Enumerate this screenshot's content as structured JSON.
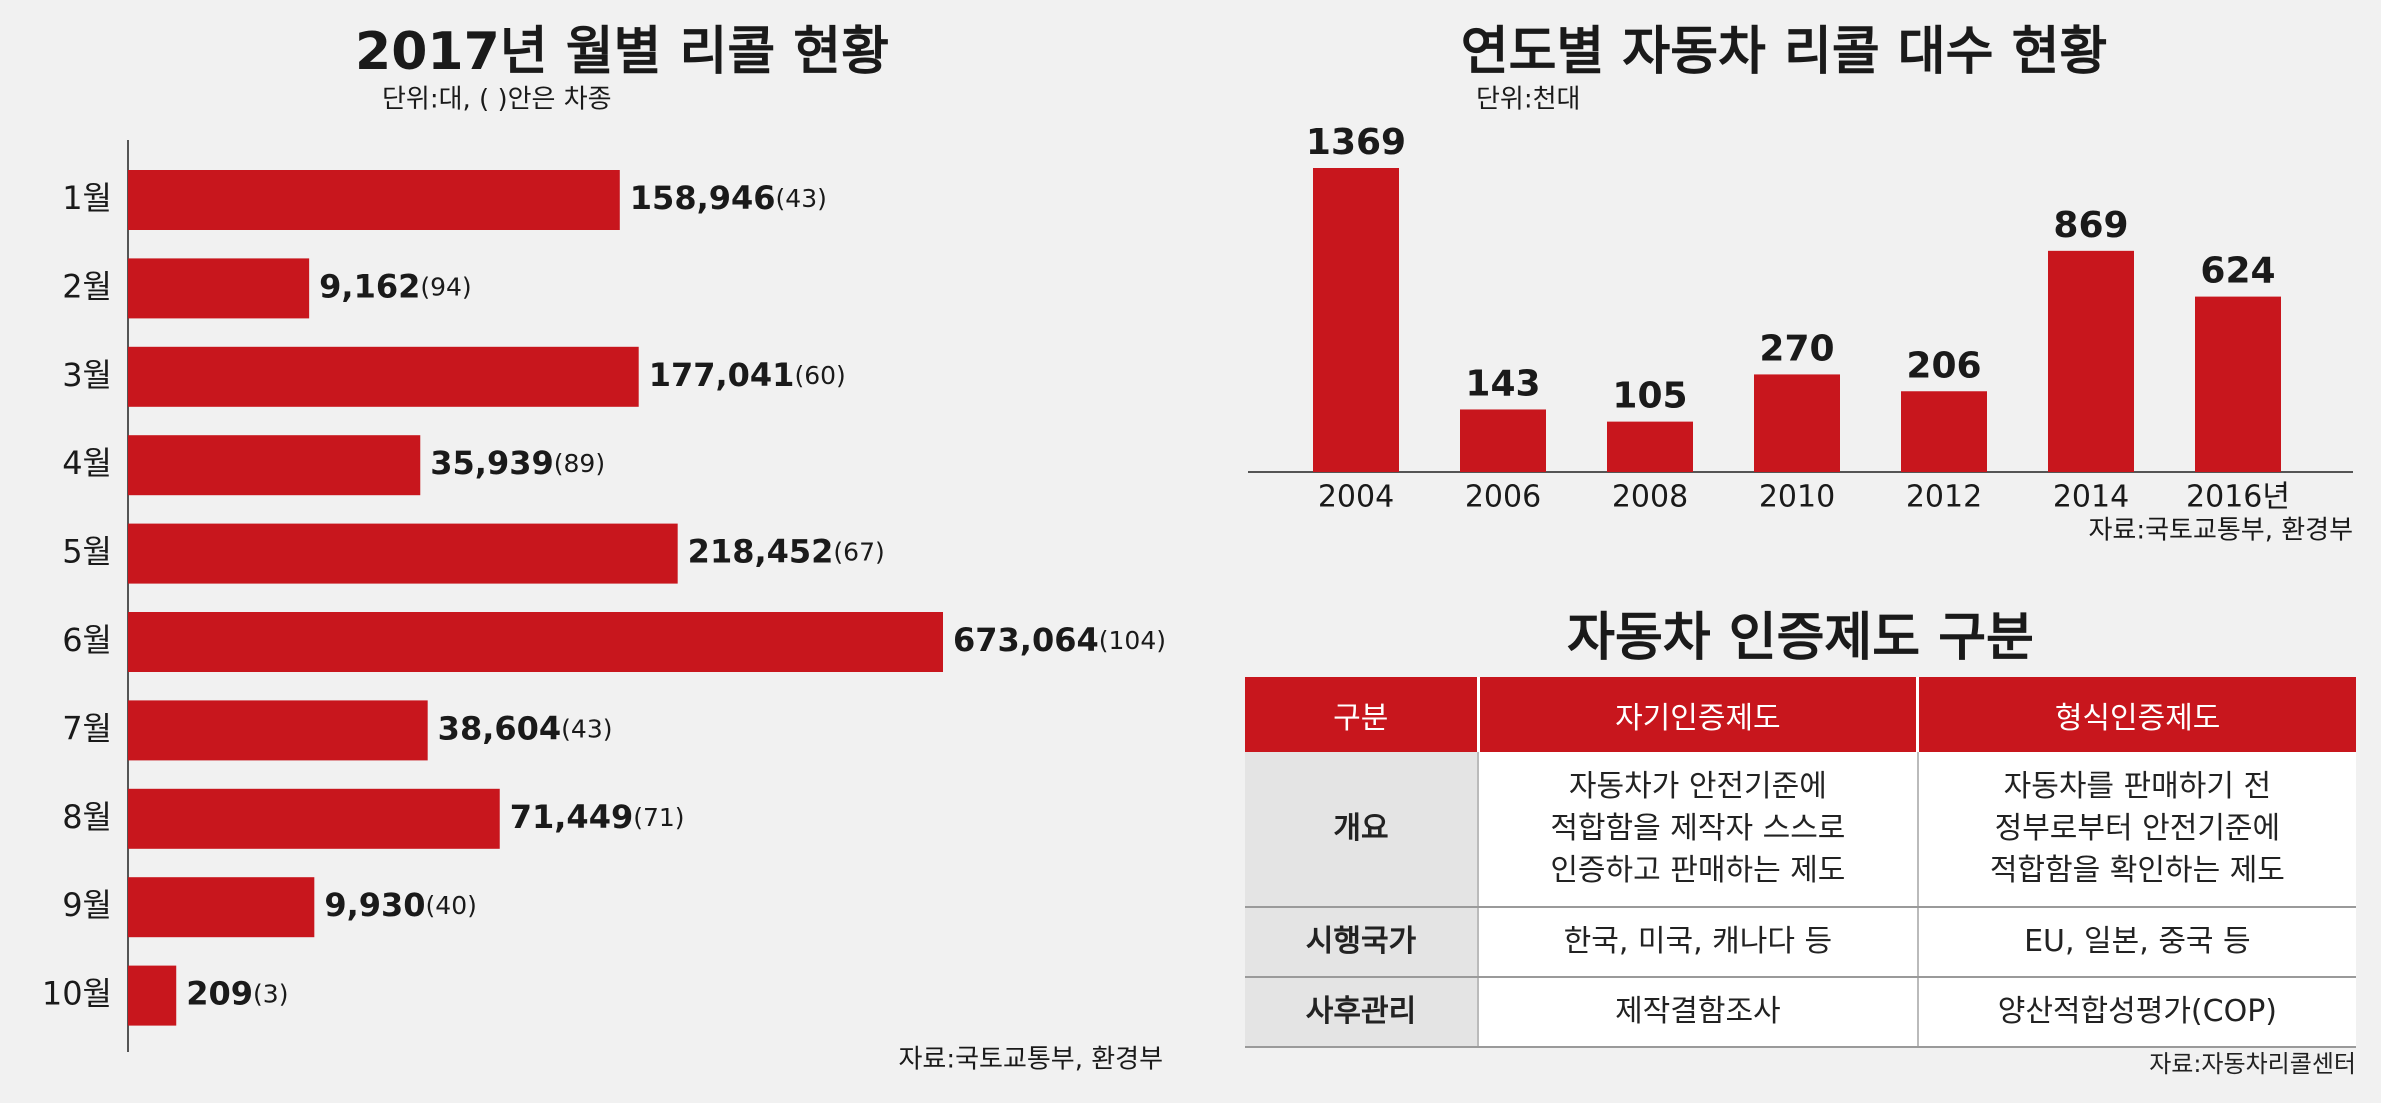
{
  "chart_data": [
    {
      "type": "bar",
      "orientation": "horizontal",
      "title": "2017년 월별 리콜 현황",
      "subtitle": "단위:대, (  )안은 차종",
      "categories": [
        "1월",
        "2월",
        "3월",
        "4월",
        "5월",
        "6월",
        "7월",
        "8월",
        "9월",
        "10월"
      ],
      "values": [
        158946,
        9162,
        177041,
        35939,
        218452,
        673064,
        38604,
        71449,
        9930,
        209
      ],
      "value_labels": [
        "158,946",
        "9,162",
        "177,041",
        "35,939",
        "218,452",
        "673,064",
        "38,604",
        "71,449",
        "9,930",
        "209"
      ],
      "count_labels": [
        "(43)",
        "(94)",
        "(60)",
        "(89)",
        "(67)",
        "(104)",
        "(43)",
        "(71)",
        "(40)",
        "(3)"
      ],
      "color": "#c8161d",
      "source": "자료:국토교통부, 환경부"
    },
    {
      "type": "bar",
      "orientation": "vertical",
      "title": "연도별 자동차 리콜 대수 현황",
      "subtitle": "단위:천대",
      "categories": [
        "2004",
        "2006",
        "2008",
        "2010",
        "2012",
        "2014",
        "2016년"
      ],
      "values": [
        1369,
        143,
        105,
        270,
        206,
        869,
        624
      ],
      "color": "#c8161d",
      "source": "자료:국토교통부, 환경부"
    }
  ],
  "table": {
    "title": "자동차 인증제도 구분",
    "header": [
      "구분",
      "자기인증제도",
      "형식인증제도"
    ],
    "rows": [
      [
        "개요",
        "자동차가 안전기준에\n적합함을 제작자 스스로\n인증하고 판매하는 제도",
        "자동차를 판매하기 전\n정부로부터 안전기준에\n적합함을 확인하는 제도"
      ],
      [
        "시행국가",
        "한국, 미국, 캐나다 등",
        "EU, 일본, 중국 등"
      ],
      [
        "사후관리",
        "제작결함조사",
        "양산적합성평가(COP)"
      ]
    ],
    "source": "자료:자동차리콜센터"
  }
}
